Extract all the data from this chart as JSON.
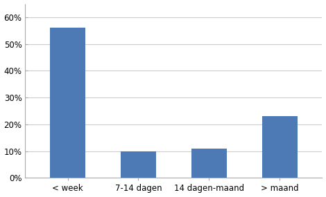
{
  "categories": [
    "< week",
    "7-14 dagen",
    "14 dagen-maand",
    "> maand"
  ],
  "values": [
    0.56,
    0.1,
    0.11,
    0.23
  ],
  "bar_color": "#4d7ab5",
  "ylim": [
    0,
    0.65
  ],
  "yticks": [
    0.0,
    0.1,
    0.2,
    0.3,
    0.4,
    0.5,
    0.6
  ],
  "ytick_labels": [
    "0%",
    "10%",
    "20%",
    "30%",
    "40%",
    "50%",
    "60%"
  ],
  "background_color": "#ffffff",
  "bar_width": 0.5,
  "tick_fontsize": 8.5,
  "label_fontsize": 8.5,
  "grid_color": "#cccccc",
  "spine_color": "#aaaaaa"
}
